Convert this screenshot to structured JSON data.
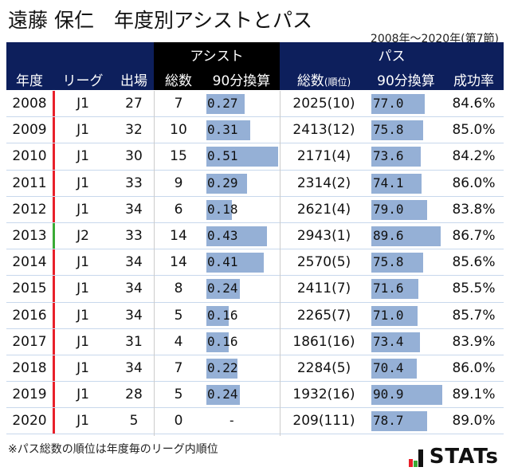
{
  "title": "遠藤 保仁　年度別アシストとパス",
  "subtitle": "2008年～2020年(第7節)",
  "header": {
    "group_assist": "アシスト",
    "group_pass": "パス",
    "year": "年度",
    "league": "リーグ",
    "apps": "出場",
    "assist_total": "総数",
    "assist_per90": "90分換算",
    "pass_total": "総数",
    "pass_total_sub": "(順位)",
    "pass_per90": "90分換算",
    "success": "成功率"
  },
  "league_colors": {
    "J1": "#e8202a",
    "J2": "#3aaa35"
  },
  "rows": [
    {
      "year": "2008",
      "league": "J1",
      "apps": "27",
      "assists": "7",
      "a90": "0.27",
      "a90v": 0.27,
      "passes": "2025(10)",
      "p90": "77.0",
      "p90v": 77.0,
      "rate": "84.6%"
    },
    {
      "year": "2009",
      "league": "J1",
      "apps": "32",
      "assists": "10",
      "a90": "0.31",
      "a90v": 0.31,
      "passes": "2413(12)",
      "p90": "75.8",
      "p90v": 75.8,
      "rate": "85.0%"
    },
    {
      "year": "2010",
      "league": "J1",
      "apps": "30",
      "assists": "15",
      "a90": "0.51",
      "a90v": 0.51,
      "passes": "2171(4)",
      "p90": "73.6",
      "p90v": 73.6,
      "rate": "84.2%"
    },
    {
      "year": "2011",
      "league": "J1",
      "apps": "33",
      "assists": "9",
      "a90": "0.29",
      "a90v": 0.29,
      "passes": "2314(2)",
      "p90": "74.1",
      "p90v": 74.1,
      "rate": "86.0%"
    },
    {
      "year": "2012",
      "league": "J1",
      "apps": "34",
      "assists": "6",
      "a90": "0.18",
      "a90v": 0.18,
      "passes": "2621(4)",
      "p90": "79.0",
      "p90v": 79.0,
      "rate": "83.8%"
    },
    {
      "year": "2013",
      "league": "J2",
      "apps": "33",
      "assists": "14",
      "a90": "0.43",
      "a90v": 0.43,
      "passes": "2943(1)",
      "p90": "89.6",
      "p90v": 89.6,
      "rate": "86.7%"
    },
    {
      "year": "2014",
      "league": "J1",
      "apps": "34",
      "assists": "14",
      "a90": "0.41",
      "a90v": 0.41,
      "passes": "2570(5)",
      "p90": "75.8",
      "p90v": 75.8,
      "rate": "85.6%"
    },
    {
      "year": "2015",
      "league": "J1",
      "apps": "34",
      "assists": "8",
      "a90": "0.24",
      "a90v": 0.24,
      "passes": "2411(7)",
      "p90": "71.6",
      "p90v": 71.6,
      "rate": "85.5%"
    },
    {
      "year": "2016",
      "league": "J1",
      "apps": "34",
      "assists": "5",
      "a90": "0.16",
      "a90v": 0.16,
      "passes": "2265(7)",
      "p90": "71.0",
      "p90v": 71.0,
      "rate": "85.7%"
    },
    {
      "year": "2017",
      "league": "J1",
      "apps": "31",
      "assists": "4",
      "a90": "0.16",
      "a90v": 0.16,
      "passes": "1861(16)",
      "p90": "73.4",
      "p90v": 73.4,
      "rate": "83.9%"
    },
    {
      "year": "2018",
      "league": "J1",
      "apps": "34",
      "assists": "7",
      "a90": "0.22",
      "a90v": 0.22,
      "passes": "2284(5)",
      "p90": "70.4",
      "p90v": 70.4,
      "rate": "86.0%"
    },
    {
      "year": "2019",
      "league": "J1",
      "apps": "28",
      "assists": "5",
      "a90": "0.24",
      "a90v": 0.24,
      "passes": "1932(16)",
      "p90": "90.9",
      "p90v": 90.9,
      "rate": "89.1%"
    },
    {
      "year": "2020",
      "league": "J1",
      "apps": "5",
      "assists": "0",
      "a90": "-",
      "a90v": 0,
      "passes": "209(111)",
      "p90": "78.7",
      "p90v": 78.7,
      "rate": "89.0%"
    }
  ],
  "footnote": "※パス総数の順位は年度毎のリーグ内順位",
  "logo": "STATs"
}
